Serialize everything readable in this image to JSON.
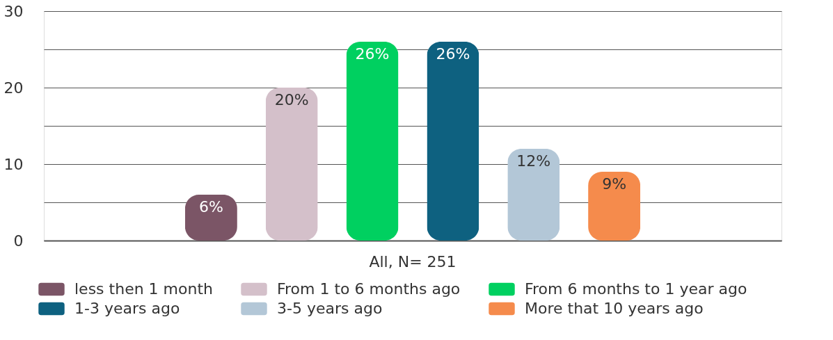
{
  "chart_data": {
    "type": "bar",
    "categories": [
      "All, N= 251"
    ],
    "series": [
      {
        "name": "less then 1 month",
        "color": "#7b5566",
        "values": [
          6
        ],
        "value_labels": [
          "6%"
        ]
      },
      {
        "name": "From 1 to 6 months ago",
        "color": "#d4c0ca",
        "values": [
          20
        ],
        "value_labels": [
          "20%"
        ]
      },
      {
        "name": "From 6 months to 1 year ago",
        "color": "#00d060",
        "values": [
          26
        ],
        "value_labels": [
          "26%"
        ]
      },
      {
        "name": "1-3 years ago",
        "color": "#0e6180",
        "values": [
          26
        ],
        "value_labels": [
          "26%"
        ]
      },
      {
        "name": "3-5 years ago",
        "color": "#b3c7d7",
        "values": [
          12
        ],
        "value_labels": [
          "12%"
        ]
      },
      {
        "name": "More that 10 years ago",
        "color": "#f58b4c",
        "values": [
          9
        ],
        "value_labels": [
          "9%"
        ]
      }
    ],
    "ylim": [
      0,
      30
    ],
    "yticks": [
      0,
      {
        "value": 5,
        "label": null
      },
      10,
      {
        "value": 15,
        "label": null
      },
      20,
      {
        "value": 25,
        "label": null
      },
      30
    ],
    "grid": "y",
    "legend": "bottom"
  }
}
